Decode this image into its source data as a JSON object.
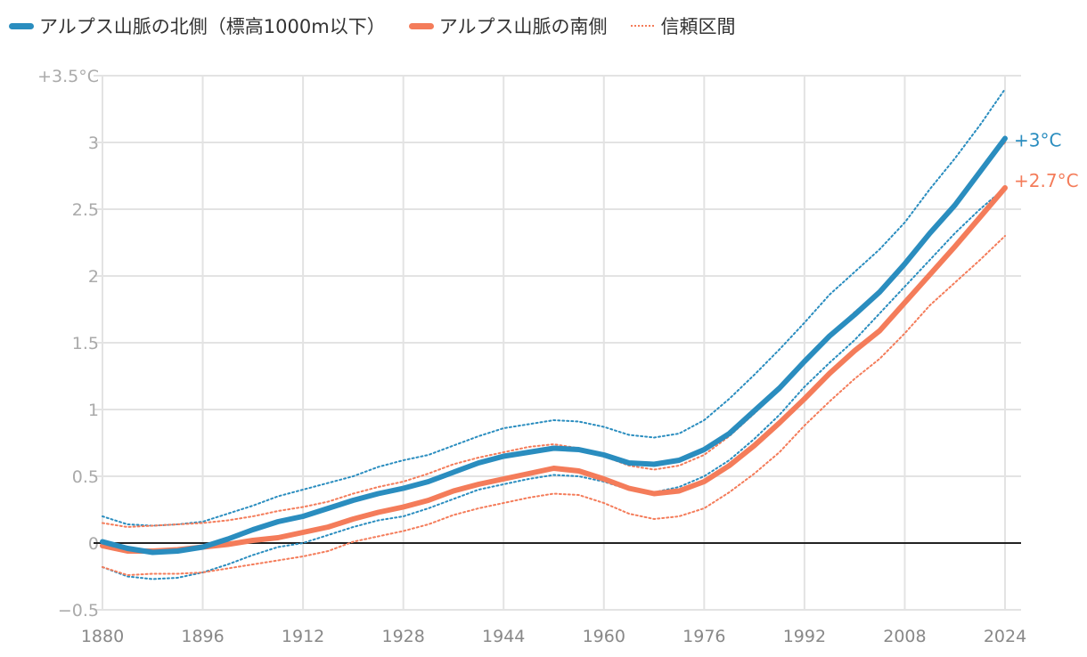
{
  "chart_data": {
    "type": "line",
    "legend": {
      "placement": "top",
      "items": [
        "アルプス山脈の北側（標高1000m以下）",
        "アルプス山脈の南側",
        "信頼区間"
      ]
    },
    "x": [
      1880,
      1884,
      1888,
      1892,
      1896,
      1900,
      1904,
      1908,
      1912,
      1916,
      1920,
      1924,
      1928,
      1932,
      1936,
      1940,
      1944,
      1948,
      1952,
      1956,
      1960,
      1964,
      1968,
      1972,
      1976,
      1980,
      1984,
      1988,
      1992,
      1996,
      2000,
      2004,
      2008,
      2012,
      2016,
      2020,
      2024
    ],
    "series": [
      {
        "name": "アルプス山脈の北側（標高1000m以下）",
        "color": "#2a8dbf",
        "style": "solid",
        "values": [
          0.01,
          -0.04,
          -0.07,
          -0.06,
          -0.03,
          0.03,
          0.1,
          0.16,
          0.2,
          0.26,
          0.32,
          0.37,
          0.41,
          0.46,
          0.53,
          0.6,
          0.65,
          0.68,
          0.71,
          0.7,
          0.66,
          0.6,
          0.59,
          0.62,
          0.7,
          0.82,
          0.99,
          1.16,
          1.36,
          1.55,
          1.71,
          1.88,
          2.09,
          2.32,
          2.53,
          2.78,
          3.03
        ]
      },
      {
        "name": "アルプス山脈の南側",
        "color": "#f47c5a",
        "style": "solid",
        "values": [
          -0.02,
          -0.06,
          -0.06,
          -0.05,
          -0.03,
          -0.01,
          0.02,
          0.04,
          0.08,
          0.12,
          0.18,
          0.23,
          0.27,
          0.32,
          0.39,
          0.44,
          0.48,
          0.52,
          0.56,
          0.54,
          0.48,
          0.41,
          0.37,
          0.39,
          0.46,
          0.58,
          0.73,
          0.9,
          1.08,
          1.27,
          1.44,
          1.59,
          1.8,
          2.01,
          2.22,
          2.44,
          2.66
        ]
      },
      {
        "group": "信頼区間",
        "color": "#2a8dbf",
        "style": "dotted",
        "values": [
          0.2,
          0.14,
          0.13,
          0.14,
          0.16,
          0.22,
          0.28,
          0.35,
          0.4,
          0.45,
          0.5,
          0.57,
          0.62,
          0.66,
          0.73,
          0.8,
          0.86,
          0.89,
          0.92,
          0.91,
          0.87,
          0.81,
          0.79,
          0.82,
          0.92,
          1.08,
          1.26,
          1.45,
          1.65,
          1.86,
          2.03,
          2.2,
          2.4,
          2.65,
          2.88,
          3.13,
          3.4
        ]
      },
      {
        "group": "信頼区間",
        "color": "#2a8dbf",
        "style": "dotted",
        "values": [
          -0.18,
          -0.25,
          -0.27,
          -0.26,
          -0.22,
          -0.16,
          -0.09,
          -0.03,
          0.0,
          0.06,
          0.12,
          0.17,
          0.2,
          0.26,
          0.33,
          0.4,
          0.44,
          0.48,
          0.51,
          0.5,
          0.46,
          0.4,
          0.38,
          0.42,
          0.5,
          0.62,
          0.78,
          0.96,
          1.17,
          1.35,
          1.52,
          1.72,
          1.92,
          2.12,
          2.32,
          2.5,
          2.66
        ]
      },
      {
        "group": "信頼区間",
        "color": "#f47c5a",
        "style": "dotted",
        "values": [
          0.15,
          0.12,
          0.13,
          0.14,
          0.15,
          0.17,
          0.2,
          0.24,
          0.27,
          0.31,
          0.37,
          0.42,
          0.46,
          0.52,
          0.59,
          0.64,
          0.68,
          0.72,
          0.74,
          0.71,
          0.65,
          0.58,
          0.55,
          0.58,
          0.66,
          0.8,
          0.97,
          1.15,
          1.35,
          1.55,
          1.73,
          1.88,
          2.1,
          2.32,
          2.55,
          2.8,
          3.0
        ]
      },
      {
        "group": "信頼区間",
        "color": "#f47c5a",
        "style": "dotted",
        "values": [
          -0.18,
          -0.24,
          -0.23,
          -0.23,
          -0.22,
          -0.19,
          -0.16,
          -0.13,
          -0.1,
          -0.06,
          0.01,
          0.05,
          0.09,
          0.14,
          0.21,
          0.26,
          0.3,
          0.34,
          0.37,
          0.36,
          0.3,
          0.22,
          0.18,
          0.2,
          0.26,
          0.38,
          0.52,
          0.68,
          0.88,
          1.06,
          1.23,
          1.38,
          1.57,
          1.78,
          1.95,
          2.12,
          2.3
        ]
      }
    ],
    "end_labels": [
      "+3°C",
      "+2.7°C"
    ],
    "xlim": [
      1880,
      2024
    ],
    "ylim": [
      -0.5,
      3.5
    ],
    "x_ticks": [
      1880,
      1896,
      1912,
      1928,
      1944,
      1960,
      1976,
      1992,
      2008,
      2024
    ],
    "x_tick_labels": [
      "1880",
      "1896",
      "1912",
      "1928",
      "1944",
      "1960",
      "1976",
      "1992",
      "2008",
      "2024"
    ],
    "y_ticks": [
      -0.5,
      0,
      0.5,
      1,
      1.5,
      2,
      2.5,
      3,
      3.5
    ],
    "y_tick_labels": [
      "−0.5",
      "0",
      "0.5",
      "1",
      "1.5",
      "2",
      "2.5",
      "3",
      "+3.5°C"
    ],
    "grid": true
  }
}
